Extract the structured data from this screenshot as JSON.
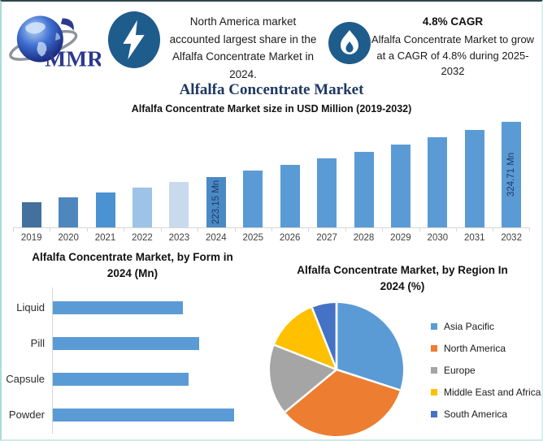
{
  "page": {
    "main_title": "Alfalfa Concentrate Market"
  },
  "header": {
    "logo_text": "MMR",
    "headline": "North America market accounted largest share in the Alfalfa Concentrate Market in 2024.",
    "cagr_title": "4.8% CAGR",
    "cagr_text": "Alfalfa Concentrate Market to grow at a CAGR of 4.8% during 2025-2032"
  },
  "colors": {
    "accent_blue": "#5B9BD5",
    "icon_circle_blue": "#1E5C8C",
    "title_navy": "#1F3864",
    "logo_blue": "#2B3990",
    "axis_gray": "#d6d6d6"
  },
  "chart_data": [
    {
      "type": "bar",
      "title": "Alfalfa Concentrate Market size in USD Million (2019-2032)",
      "xlabel": "",
      "ylabel": "USD Million",
      "categories": [
        "2019",
        "2020",
        "2021",
        "2022",
        "2023",
        "2024",
        "2025",
        "2026",
        "2027",
        "2028",
        "2029",
        "2030",
        "2031",
        "2032"
      ],
      "values": [
        176.5,
        185.0,
        193.9,
        203.2,
        212.9,
        223.15,
        233.9,
        245.1,
        256.9,
        269.2,
        282.1,
        295.6,
        309.8,
        324.71
      ],
      "ylim": [
        130,
        330
      ],
      "grid": false,
      "bar_colors": [
        "#41719C",
        "#4E86BE",
        "#4B92D2",
        "#9DC3E6",
        "#C9DAEC",
        "#4A8AC4",
        "#5B9BD5",
        "#5B9BD5",
        "#5B9BD5",
        "#5B9BD5",
        "#5B9BD5",
        "#5B9BD5",
        "#5B9BD5",
        "#5B9BD5"
      ],
      "data_labels": [
        {
          "index": 5,
          "text": "223.15 Mn"
        },
        {
          "index": 13,
          "text": "324.71 Mn"
        }
      ]
    },
    {
      "type": "bar",
      "orientation": "horizontal",
      "title": "Alfalfa Concentrate Market, by Form in 2024 (Mn)",
      "categories": [
        "Liquid",
        "Pill",
        "Capsule",
        "Powder"
      ],
      "values": [
        49,
        55,
        51,
        68
      ],
      "xlim": [
        0,
        68
      ],
      "grid": false,
      "bar_color": "#5B9BD5"
    },
    {
      "type": "pie",
      "title": "Alfalfa Concentrate Market, by Region In 2024 (%)",
      "labels": [
        "Asia Pacific",
        "North America",
        "Europe",
        "Middle East and Africa",
        "South America"
      ],
      "values": [
        30,
        34,
        17,
        13,
        6
      ],
      "colors": [
        "#5B9BD5",
        "#ED7D31",
        "#A5A5A5",
        "#FFC000",
        "#4472C4"
      ],
      "start_angle_deg": 0,
      "legend_position": "right"
    }
  ]
}
